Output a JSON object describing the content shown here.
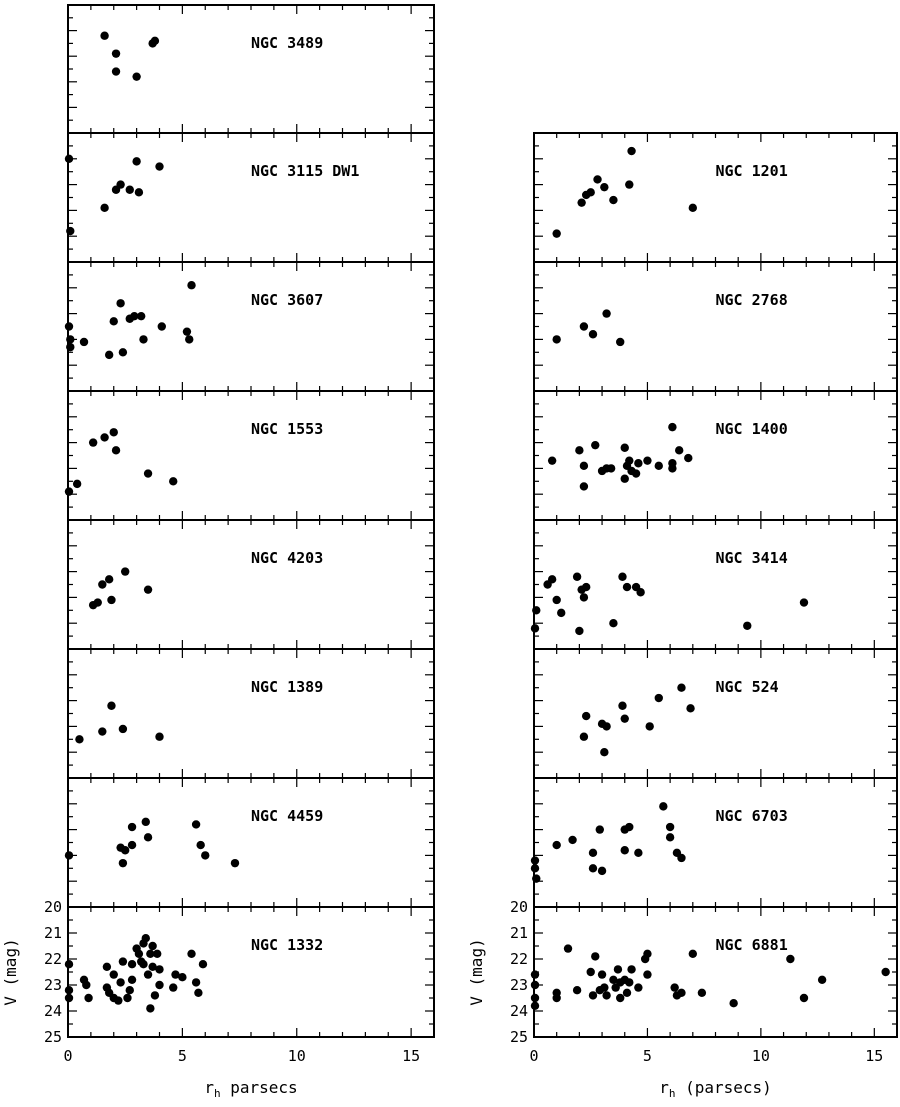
{
  "chart_data": [
    {
      "type": "scatter",
      "column": "left",
      "x_label_main": "r",
      "x_label_sub": "h",
      "x_label_rest": " parsecs",
      "y_label": "V (mag)",
      "x_ticks": [
        "0",
        "5",
        "10",
        "15"
      ],
      "y_ticks": [
        "20",
        "21",
        "22",
        "23",
        "24",
        "25"
      ],
      "xlim": [
        0,
        16
      ],
      "ylim": [
        25,
        20
      ],
      "panels": [
        {
          "name": "NGC 3489",
          "points": [
            [
              1.6,
              21.2
            ],
            [
              2.1,
              21.9
            ],
            [
              2.1,
              22.6
            ],
            [
              3.0,
              22.8
            ],
            [
              3.7,
              21.5
            ],
            [
              3.8,
              21.4
            ]
          ]
        },
        {
          "name": "NGC 3115 DW1",
          "points": [
            [
              0.0,
              21.0
            ],
            [
              0.1,
              23.8
            ],
            [
              1.6,
              22.9
            ],
            [
              2.1,
              22.2
            ],
            [
              2.3,
              22.0
            ],
            [
              2.7,
              22.2
            ],
            [
              3.0,
              21.1
            ],
            [
              3.1,
              22.3
            ],
            [
              4.0,
              21.3
            ]
          ]
        },
        {
          "name": "NGC 3607",
          "points": [
            [
              0.0,
              22.5
            ],
            [
              0.1,
              23.0
            ],
            [
              0.1,
              23.3
            ],
            [
              0.7,
              23.1
            ],
            [
              1.8,
              23.6
            ],
            [
              2.0,
              22.3
            ],
            [
              2.3,
              21.6
            ],
            [
              2.4,
              23.5
            ],
            [
              2.7,
              22.2
            ],
            [
              2.9,
              22.1
            ],
            [
              3.2,
              22.1
            ],
            [
              3.3,
              23.0
            ],
            [
              4.1,
              22.5
            ],
            [
              5.2,
              22.7
            ],
            [
              5.3,
              23.0
            ],
            [
              5.4,
              20.9
            ]
          ]
        },
        {
          "name": "NGC 1553",
          "points": [
            [
              0.0,
              23.9
            ],
            [
              0.4,
              23.6
            ],
            [
              1.1,
              22.0
            ],
            [
              1.6,
              21.8
            ],
            [
              2.0,
              21.6
            ],
            [
              2.1,
              22.3
            ],
            [
              3.5,
              23.2
            ],
            [
              4.6,
              23.5
            ]
          ]
        },
        {
          "name": "NGC 4203",
          "points": [
            [
              1.1,
              23.3
            ],
            [
              1.3,
              23.2
            ],
            [
              1.5,
              22.5
            ],
            [
              1.8,
              22.3
            ],
            [
              1.9,
              23.1
            ],
            [
              2.5,
              22.0
            ],
            [
              3.5,
              22.7
            ]
          ]
        },
        {
          "name": "NGC 1389",
          "points": [
            [
              0.5,
              23.5
            ],
            [
              1.5,
              23.2
            ],
            [
              1.9,
              22.2
            ],
            [
              2.4,
              23.1
            ],
            [
              4.0,
              23.4
            ]
          ]
        },
        {
          "name": "NGC 4459",
          "points": [
            [
              0.0,
              23.0
            ],
            [
              2.3,
              22.7
            ],
            [
              2.4,
              23.3
            ],
            [
              2.5,
              22.8
            ],
            [
              2.8,
              21.9
            ],
            [
              2.8,
              22.6
            ],
            [
              3.4,
              21.7
            ],
            [
              3.5,
              22.3
            ],
            [
              5.6,
              21.8
            ],
            [
              5.8,
              22.6
            ],
            [
              6.0,
              23.0
            ],
            [
              7.3,
              23.3
            ]
          ]
        },
        {
          "name": "NGC 1332",
          "points": [
            [
              0.0,
              22.2
            ],
            [
              0.0,
              23.2
            ],
            [
              0.0,
              23.5
            ],
            [
              0.7,
              22.8
            ],
            [
              0.8,
              23.0
            ],
            [
              0.9,
              23.5
            ],
            [
              1.7,
              23.1
            ],
            [
              1.7,
              22.3
            ],
            [
              1.8,
              23.3
            ],
            [
              2.0,
              23.5
            ],
            [
              2.0,
              22.6
            ],
            [
              2.2,
              23.6
            ],
            [
              2.3,
              22.9
            ],
            [
              2.4,
              22.1
            ],
            [
              2.6,
              23.5
            ],
            [
              2.7,
              23.2
            ],
            [
              2.8,
              22.2
            ],
            [
              2.8,
              22.8
            ],
            [
              3.0,
              21.6
            ],
            [
              3.1,
              21.8
            ],
            [
              3.2,
              22.1
            ],
            [
              3.3,
              21.4
            ],
            [
              3.3,
              22.2
            ],
            [
              3.4,
              21.2
            ],
            [
              3.5,
              22.6
            ],
            [
              3.6,
              21.8
            ],
            [
              3.6,
              23.9
            ],
            [
              3.7,
              21.5
            ],
            [
              3.7,
              22.3
            ],
            [
              3.8,
              23.4
            ],
            [
              3.9,
              21.8
            ],
            [
              4.0,
              22.4
            ],
            [
              4.0,
              23.0
            ],
            [
              4.6,
              23.1
            ],
            [
              4.7,
              22.6
            ],
            [
              5.0,
              22.7
            ],
            [
              5.4,
              21.8
            ],
            [
              5.6,
              22.9
            ],
            [
              5.7,
              23.3
            ],
            [
              5.9,
              22.2
            ]
          ]
        }
      ]
    },
    {
      "type": "scatter",
      "column": "right",
      "x_label_main": "r",
      "x_label_sub": "h",
      "x_label_rest": " (parsecs)",
      "y_label": "V (mag)",
      "x_ticks": [
        "0",
        "5",
        "10",
        "15"
      ],
      "y_ticks": [
        "20",
        "21",
        "22",
        "23",
        "24",
        "25"
      ],
      "xlim": [
        0,
        16
      ],
      "ylim": [
        25,
        20
      ],
      "panels": [
        {
          "name": "NGC 1201",
          "points": [
            [
              1.0,
              23.9
            ],
            [
              2.1,
              22.7
            ],
            [
              2.3,
              22.4
            ],
            [
              2.5,
              22.3
            ],
            [
              2.8,
              21.8
            ],
            [
              3.1,
              22.1
            ],
            [
              3.5,
              22.6
            ],
            [
              4.2,
              22.0
            ],
            [
              4.3,
              20.7
            ],
            [
              7.0,
              22.9
            ]
          ]
        },
        {
          "name": "NGC 2768",
          "points": [
            [
              1.0,
              23.0
            ],
            [
              2.2,
              22.5
            ],
            [
              2.6,
              22.8
            ],
            [
              3.2,
              22.0
            ],
            [
              3.8,
              23.1
            ]
          ]
        },
        {
          "name": "NGC 1400",
          "points": [
            [
              0.8,
              22.7
            ],
            [
              2.0,
              22.3
            ],
            [
              2.2,
              23.7
            ],
            [
              2.2,
              22.9
            ],
            [
              2.7,
              22.1
            ],
            [
              3.0,
              23.1
            ],
            [
              3.2,
              23.0
            ],
            [
              3.4,
              23.0
            ],
            [
              4.0,
              22.2
            ],
            [
              4.0,
              23.4
            ],
            [
              4.1,
              22.9
            ],
            [
              4.2,
              22.7
            ],
            [
              4.3,
              23.1
            ],
            [
              4.5,
              23.2
            ],
            [
              4.6,
              22.8
            ],
            [
              5.0,
              22.7
            ],
            [
              5.5,
              22.9
            ],
            [
              6.1,
              21.4
            ],
            [
              6.1,
              23.0
            ],
            [
              6.1,
              22.8
            ],
            [
              6.4,
              22.3
            ],
            [
              6.8,
              22.6
            ]
          ]
        },
        {
          "name": "NGC 3414",
          "points": [
            [
              0.0,
              24.2
            ],
            [
              0.1,
              23.5
            ],
            [
              0.6,
              22.5
            ],
            [
              0.8,
              22.3
            ],
            [
              1.0,
              23.1
            ],
            [
              1.2,
              23.6
            ],
            [
              1.9,
              22.2
            ],
            [
              2.0,
              24.3
            ],
            [
              2.1,
              22.7
            ],
            [
              2.2,
              23.0
            ],
            [
              2.3,
              22.6
            ],
            [
              3.5,
              24.0
            ],
            [
              3.9,
              22.2
            ],
            [
              4.1,
              22.6
            ],
            [
              4.5,
              22.6
            ],
            [
              4.7,
              22.8
            ],
            [
              9.4,
              24.1
            ],
            [
              11.9,
              23.2
            ]
          ]
        },
        {
          "name": "NGC 524",
          "points": [
            [
              2.2,
              23.4
            ],
            [
              2.3,
              22.6
            ],
            [
              3.0,
              22.9
            ],
            [
              3.1,
              24.0
            ],
            [
              3.2,
              23.0
            ],
            [
              3.9,
              22.2
            ],
            [
              4.0,
              22.7
            ],
            [
              5.1,
              23.0
            ],
            [
              5.5,
              21.9
            ],
            [
              6.5,
              21.5
            ],
            [
              6.9,
              22.3
            ]
          ]
        },
        {
          "name": "NGC 6703",
          "points": [
            [
              0.0,
              23.2
            ],
            [
              0.0,
              23.5
            ],
            [
              0.1,
              23.9
            ],
            [
              1.0,
              22.6
            ],
            [
              1.7,
              22.4
            ],
            [
              2.6,
              23.5
            ],
            [
              2.6,
              22.9
            ],
            [
              2.9,
              22.0
            ],
            [
              3.0,
              23.6
            ],
            [
              4.0,
              22.0
            ],
            [
              4.0,
              22.8
            ],
            [
              4.2,
              21.9
            ],
            [
              4.6,
              22.9
            ],
            [
              5.7,
              21.1
            ],
            [
              6.0,
              22.3
            ],
            [
              6.0,
              21.9
            ],
            [
              6.3,
              22.9
            ],
            [
              6.5,
              23.1
            ]
          ]
        },
        {
          "name": "NGC 6881",
          "points": [
            [
              0.0,
              22.6
            ],
            [
              0.0,
              23.0
            ],
            [
              0.0,
              23.5
            ],
            [
              0.0,
              23.8
            ],
            [
              1.0,
              23.3
            ],
            [
              1.0,
              23.5
            ],
            [
              1.5,
              21.6
            ],
            [
              1.9,
              23.2
            ],
            [
              2.5,
              22.5
            ],
            [
              2.6,
              23.4
            ],
            [
              2.7,
              21.9
            ],
            [
              2.9,
              23.2
            ],
            [
              3.0,
              22.6
            ],
            [
              3.1,
              23.1
            ],
            [
              3.2,
              23.4
            ],
            [
              3.5,
              22.8
            ],
            [
              3.6,
              23.1
            ],
            [
              3.7,
              22.4
            ],
            [
              3.8,
              23.5
            ],
            [
              3.8,
              22.9
            ],
            [
              4.0,
              22.8
            ],
            [
              4.1,
              23.3
            ],
            [
              4.2,
              22.9
            ],
            [
              4.3,
              22.4
            ],
            [
              4.6,
              23.1
            ],
            [
              4.9,
              22.0
            ],
            [
              5.0,
              21.8
            ],
            [
              5.0,
              22.6
            ],
            [
              6.2,
              23.1
            ],
            [
              6.3,
              23.4
            ],
            [
              6.5,
              23.3
            ],
            [
              7.0,
              21.8
            ],
            [
              7.4,
              23.3
            ],
            [
              8.8,
              23.7
            ],
            [
              11.3,
              22.0
            ],
            [
              11.9,
              23.5
            ],
            [
              12.7,
              22.8
            ],
            [
              15.5,
              22.5
            ]
          ]
        }
      ]
    }
  ]
}
